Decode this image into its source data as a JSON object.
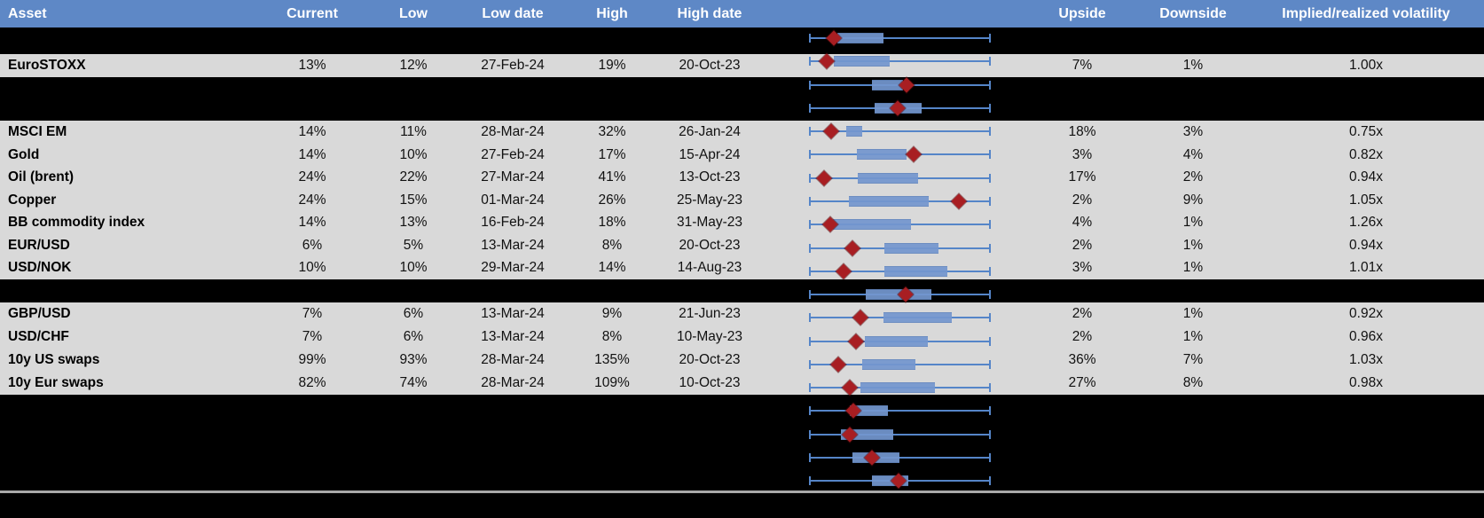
{
  "colors": {
    "header_bg": "#5E88C6",
    "header_text": "#FFFFFF",
    "row_gray": "#D9D9D9",
    "hidden_black": "#000000",
    "whisker_blue": "#5585C8",
    "box_blue": "#7497CF",
    "box_border": "#6588C0",
    "marker_red": "#A81E22",
    "divider_gray": "#A9A9A9"
  },
  "header": {
    "columns": [
      {
        "key": "asset",
        "label": "Asset"
      },
      {
        "key": "current",
        "label": "Current"
      },
      {
        "key": "low",
        "label": "Low"
      },
      {
        "key": "low_date",
        "label": "Low date"
      },
      {
        "key": "high",
        "label": "High"
      },
      {
        "key": "high_date",
        "label": "High date"
      },
      {
        "key": "upside",
        "label": "Upside"
      },
      {
        "key": "downside",
        "label": "Downside"
      },
      {
        "key": "implied_realized",
        "label": "Implied/realized volatility"
      }
    ]
  },
  "table": {
    "rows": [
      {
        "kind": "hidden",
        "box": {
          "lo": 15.8,
          "hi": 41.1,
          "marker": 13.7
        }
      },
      {
        "kind": "asset",
        "asset": "EuroSTOXX",
        "current": "13%",
        "low": "12%",
        "low_date": "27-Feb-24",
        "high": "19%",
        "high_date": "20-Oct-23",
        "upside": "7%",
        "downside": "1%",
        "implied_realized": "1.00x",
        "box": {
          "lo": 13.7,
          "hi": 44.5,
          "marker": 9.6
        }
      },
      {
        "kind": "hidden",
        "box": {
          "lo": 34.4,
          "hi": 51.5,
          "marker": 53.5
        }
      },
      {
        "kind": "hidden",
        "box": {
          "lo": 36.1,
          "hi": 62.1,
          "marker": 48.6
        }
      },
      {
        "kind": "asset",
        "asset": "MSCI EM",
        "current": "14%",
        "low": "11%",
        "low_date": "28-Mar-24",
        "high": "32%",
        "high_date": "26-Jan-24",
        "upside": "18%",
        "downside": "3%",
        "implied_realized": "0.75x",
        "box": {
          "lo": 20.6,
          "hi": 29.4,
          "marker": 12.3
        }
      },
      {
        "kind": "asset",
        "asset": "Gold",
        "current": "14%",
        "low": "10%",
        "low_date": "27-Feb-24",
        "high": "17%",
        "high_date": "15-Apr-24",
        "upside": "3%",
        "downside": "4%",
        "implied_realized": "0.82x",
        "box": {
          "lo": 26.5,
          "hi": 53.8,
          "marker": 57.7
        }
      },
      {
        "kind": "asset",
        "asset": "Oil (brent)",
        "current": "24%",
        "low": "22%",
        "low_date": "27-Mar-24",
        "high": "41%",
        "high_date": "13-Oct-23",
        "upside": "17%",
        "downside": "2%",
        "implied_realized": "0.94x",
        "box": {
          "lo": 27.0,
          "hi": 60.1,
          "marker": 8.4
        }
      },
      {
        "kind": "asset",
        "asset": "Copper",
        "current": "24%",
        "low": "15%",
        "low_date": "01-Mar-24",
        "high": "26%",
        "high_date": "25-May-23",
        "upside": "2%",
        "downside": "9%",
        "implied_realized": "1.05x",
        "box": {
          "lo": 22.1,
          "hi": 66.0,
          "marker": 82.6
        }
      },
      {
        "kind": "asset",
        "asset": "BB commodity index",
        "current": "14%",
        "low": "13%",
        "low_date": "16-Feb-24",
        "high": "18%",
        "high_date": "31-May-23",
        "upside": "4%",
        "downside": "1%",
        "implied_realized": "1.26x",
        "box": {
          "lo": 13.3,
          "hi": 56.2,
          "marker": 11.9
        }
      },
      {
        "kind": "asset",
        "asset": "EUR/USD",
        "current": "6%",
        "low": "5%",
        "low_date": "13-Mar-24",
        "high": "8%",
        "high_date": "20-Oct-23",
        "upside": "2%",
        "downside": "1%",
        "implied_realized": "0.94x",
        "box": {
          "lo": 41.6,
          "hi": 71.4,
          "marker": 24.0
        }
      },
      {
        "kind": "asset",
        "asset": "USD/NOK",
        "current": "10%",
        "low": "10%",
        "low_date": "29-Mar-24",
        "high": "14%",
        "high_date": "14-Aug-23",
        "upside": "3%",
        "downside": "1%",
        "implied_realized": "1.01x",
        "box": {
          "lo": 41.6,
          "hi": 76.2,
          "marker": 19.2
        }
      },
      {
        "kind": "hidden",
        "box": {
          "lo": 31.2,
          "hi": 67.5,
          "marker": 53.2
        }
      },
      {
        "kind": "asset",
        "asset": "GBP/USD",
        "current": "7%",
        "low": "6%",
        "low_date": "13-Mar-24",
        "high": "9%",
        "high_date": "21-Jun-23",
        "upside": "2%",
        "downside": "1%",
        "implied_realized": "0.92x",
        "box": {
          "lo": 41.0,
          "hi": 78.3,
          "marker": 28.3
        }
      },
      {
        "kind": "asset",
        "asset": "USD/CHF",
        "current": "7%",
        "low": "6%",
        "low_date": "13-Mar-24",
        "high": "8%",
        "high_date": "10-May-23",
        "upside": "2%",
        "downside": "1%",
        "implied_realized": "0.96x",
        "box": {
          "lo": 30.9,
          "hi": 65.4,
          "marker": 26.0
        }
      },
      {
        "kind": "asset",
        "asset": "10y US swaps",
        "current": "99%",
        "low": "93%",
        "low_date": "28-Mar-24",
        "high": "135%",
        "high_date": "20-Oct-23",
        "upside": "36%",
        "downside": "7%",
        "implied_realized": "1.03x",
        "box": {
          "lo": 29.3,
          "hi": 58.5,
          "marker": 16.1
        }
      },
      {
        "kind": "asset",
        "asset": "10y Eur swaps",
        "current": "82%",
        "low": "74%",
        "low_date": "28-Mar-24",
        "high": "109%",
        "high_date": "10-Oct-23",
        "upside": "27%",
        "downside": "8%",
        "implied_realized": "0.98x",
        "box": {
          "lo": 28.4,
          "hi": 69.4,
          "marker": 22.2
        }
      },
      {
        "kind": "hidden",
        "box": {
          "lo": 22.2,
          "hi": 43.4,
          "marker": 24.2
        }
      },
      {
        "kind": "hidden",
        "box": {
          "lo": 17.4,
          "hi": 46.3,
          "marker": 22.2
        }
      },
      {
        "kind": "hidden",
        "box": {
          "lo": 23.9,
          "hi": 49.6,
          "marker": 34.4
        }
      },
      {
        "kind": "hidden",
        "box": {
          "lo": 34.4,
          "hi": 54.4,
          "marker": 49.1
        }
      }
    ]
  },
  "chart_data": {
    "type": "boxplot",
    "note_axis": "Each row's whisker spans the full low-to-high implied volatility range (0-100%); box and red diamond (current level) are positioned as percent of that range.",
    "rows": [
      {
        "name": "hidden-1",
        "box_lo_pct": 15.8,
        "box_hi_pct": 41.1,
        "marker_pct": 13.7
      },
      {
        "name": "EuroSTOXX",
        "box_lo_pct": 13.7,
        "box_hi_pct": 44.5,
        "marker_pct": 9.6
      },
      {
        "name": "hidden-2",
        "box_lo_pct": 34.4,
        "box_hi_pct": 51.5,
        "marker_pct": 53.5
      },
      {
        "name": "hidden-3",
        "box_lo_pct": 36.1,
        "box_hi_pct": 62.1,
        "marker_pct": 48.6
      },
      {
        "name": "MSCI EM",
        "box_lo_pct": 20.6,
        "box_hi_pct": 29.4,
        "marker_pct": 12.3
      },
      {
        "name": "Gold",
        "box_lo_pct": 26.5,
        "box_hi_pct": 53.8,
        "marker_pct": 57.7
      },
      {
        "name": "Oil (brent)",
        "box_lo_pct": 27.0,
        "box_hi_pct": 60.1,
        "marker_pct": 8.4
      },
      {
        "name": "Copper",
        "box_lo_pct": 22.1,
        "box_hi_pct": 66.0,
        "marker_pct": 82.6
      },
      {
        "name": "BB commodity index",
        "box_lo_pct": 13.3,
        "box_hi_pct": 56.2,
        "marker_pct": 11.9
      },
      {
        "name": "EUR/USD",
        "box_lo_pct": 41.6,
        "box_hi_pct": 71.4,
        "marker_pct": 24.0
      },
      {
        "name": "USD/NOK",
        "box_lo_pct": 41.6,
        "box_hi_pct": 76.2,
        "marker_pct": 19.2
      },
      {
        "name": "hidden-4",
        "box_lo_pct": 31.2,
        "box_hi_pct": 67.5,
        "marker_pct": 53.2
      },
      {
        "name": "GBP/USD",
        "box_lo_pct": 41.0,
        "box_hi_pct": 78.3,
        "marker_pct": 28.3
      },
      {
        "name": "USD/CHF",
        "box_lo_pct": 30.9,
        "box_hi_pct": 65.4,
        "marker_pct": 26.0
      },
      {
        "name": "10y US swaps",
        "box_lo_pct": 29.3,
        "box_hi_pct": 58.5,
        "marker_pct": 16.1
      },
      {
        "name": "10y Eur swaps",
        "box_lo_pct": 28.4,
        "box_hi_pct": 69.4,
        "marker_pct": 22.2
      },
      {
        "name": "hidden-5",
        "box_lo_pct": 22.2,
        "box_hi_pct": 43.4,
        "marker_pct": 24.2
      },
      {
        "name": "hidden-6",
        "box_lo_pct": 17.4,
        "box_hi_pct": 46.3,
        "marker_pct": 22.2
      },
      {
        "name": "hidden-7",
        "box_lo_pct": 23.9,
        "box_hi_pct": 49.6,
        "marker_pct": 34.4
      },
      {
        "name": "hidden-8",
        "box_lo_pct": 34.4,
        "box_hi_pct": 54.4,
        "marker_pct": 49.1
      }
    ]
  }
}
